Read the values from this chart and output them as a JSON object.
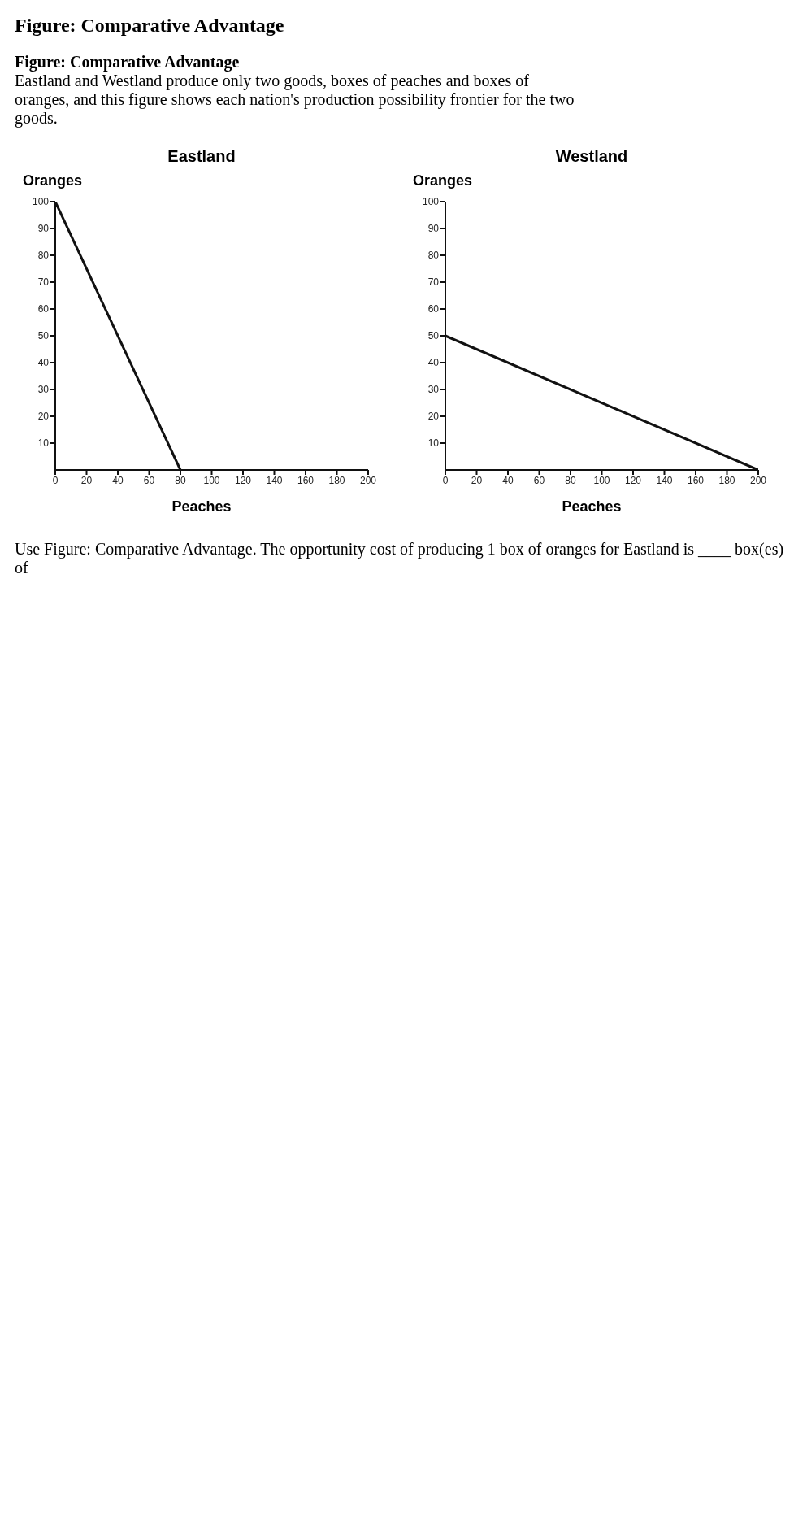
{
  "chart_data": [
    {
      "type": "line",
      "title": "Eastland",
      "xlabel": "Peaches",
      "ylabel": "Oranges",
      "x": [
        0,
        80
      ],
      "values": [
        100,
        0
      ],
      "color": "#111111",
      "marker": "none",
      "line_style": "solid",
      "xlim": [
        0,
        200
      ],
      "xticks": [
        0,
        20,
        40,
        60,
        80,
        100,
        120,
        140,
        160,
        180,
        200
      ],
      "ylim": [
        0,
        100
      ],
      "yticks": [
        10,
        20,
        30,
        40,
        50,
        60,
        70,
        80,
        90,
        100
      ],
      "annotations": [
        "Figure: Comparative Advantage",
        "Figure: Comparative Advantage",
        "Eastland and Westland produce only two goods, boxes of peaches and boxes of oranges, and this figure shows each nation's production possibility frontier for the two goods.",
        "Use Figure: Comparative Advantage. The opportunity cost of producing 1 box of oranges for Eastland is ____ box(es) of"
      ]
    },
    {
      "type": "line",
      "title": "Westland",
      "xlabel": "Peaches",
      "ylabel": "Oranges",
      "x": [
        0,
        200
      ],
      "values": [
        50,
        0
      ],
      "color": "#111111",
      "marker": "none",
      "line_style": "solid",
      "xlim": [
        0,
        200
      ],
      "xticks": [
        0,
        20,
        40,
        60,
        80,
        100,
        120,
        140,
        160,
        180,
        200
      ],
      "ylim": [
        0,
        100
      ],
      "yticks": [
        10,
        20,
        30,
        40,
        50,
        60,
        70,
        80,
        90,
        100
      ]
    }
  ]
}
